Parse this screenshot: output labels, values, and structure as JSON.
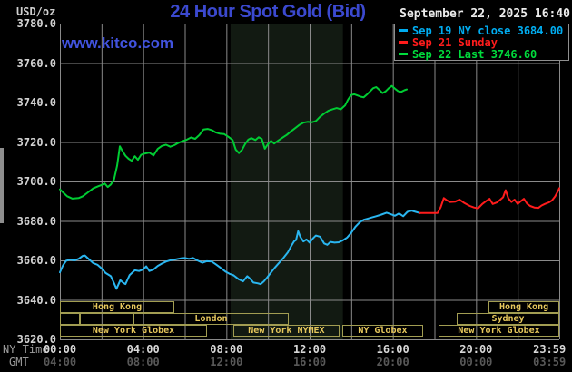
{
  "header": {
    "units_label": "USD/oz",
    "title": "24 Hour Spot Gold (Bid)",
    "datetime": "September 22, 2025 16:40",
    "watermark": "www.kitco.com"
  },
  "legend": {
    "items": [
      {
        "label": "Sep 19 NY close 3684.00",
        "color": "#00acf0"
      },
      {
        "label": "Sep 21 Sunday",
        "color": "#ff1c1c"
      },
      {
        "label": "Sep 22 Last 3746.60",
        "color": "#00dc3c"
      }
    ]
  },
  "axes": {
    "y_ticks": [
      "3780.0",
      "3760.0",
      "3740.0",
      "3720.0",
      "3700.0",
      "3680.0",
      "3660.0",
      "3640.0",
      "3620.0"
    ],
    "x_rows": [
      {
        "label": "NY Time",
        "ticks": [
          "00:00",
          "04:00",
          "08:00",
          "12:00",
          "16:00",
          "20:00",
          "23:59"
        ]
      },
      {
        "label": "GMT",
        "ticks": [
          "04:00",
          "08:00",
          "12:00",
          "16:00",
          "20:00",
          "00:00",
          "03:59"
        ]
      }
    ],
    "x_tick_hours": [
      0,
      4,
      8,
      12,
      16,
      20,
      24
    ]
  },
  "sessions": {
    "rows": [
      {
        "boxes": [
          {
            "label": "Hong Kong",
            "start": 0,
            "end": 5.5
          },
          {
            "label": "Hong Kong",
            "start": 20.6,
            "end": 24
          }
        ]
      },
      {
        "boxes": [
          {
            "label": "",
            "start": 0,
            "end": 0.96
          },
          {
            "label": "",
            "start": 0.96,
            "end": 3.53
          },
          {
            "label": "London",
            "start": 3.53,
            "end": 11.0
          },
          {
            "label": "Sydney",
            "start": 19.07,
            "end": 24
          }
        ]
      },
      {
        "boxes": [
          {
            "label": "New York Globex",
            "start": 0,
            "end": 7.07
          },
          {
            "label": "New York NYMEX",
            "start": 8.33,
            "end": 13.44
          },
          {
            "label": "NY Globex",
            "start": 13.57,
            "end": 17.45
          },
          {
            "label": "New York Globex",
            "start": 18.2,
            "end": 24
          }
        ]
      }
    ]
  },
  "chart_data": {
    "type": "line",
    "title": "24 Hour Spot Gold (Bid)",
    "xlabel": "NY Time",
    "ylabel": "USD/oz",
    "x_range_hours": [
      0,
      24
    ],
    "ylim": [
      3620,
      3780
    ],
    "y_tick_step": 20,
    "x_gridline_step_hours": 2,
    "grid": true,
    "legend_position": "top-right",
    "shaded_band_hours": [
      8.2,
      13.6
    ],
    "shaded_band_color": "#121a12",
    "grid_color": "#8a8a8a",
    "last": 3746.6,
    "prev_close": 3684.0,
    "series": [
      {
        "name": "Sep 19 NY close 3684.00",
        "color": "#2ab6f0",
        "points": [
          [
            0,
            3654
          ],
          [
            0.15,
            3657.5
          ],
          [
            0.3,
            3659.8
          ],
          [
            0.5,
            3660.3
          ],
          [
            0.7,
            3660
          ],
          [
            0.9,
            3660.8
          ],
          [
            1.1,
            3662.3
          ],
          [
            1.2,
            3662.5
          ],
          [
            1.4,
            3660.5
          ],
          [
            1.6,
            3658.6
          ],
          [
            1.8,
            3657.8
          ],
          [
            2.0,
            3656
          ],
          [
            2.2,
            3653.6
          ],
          [
            2.45,
            3652
          ],
          [
            2.6,
            3648.5
          ],
          [
            2.72,
            3645.6
          ],
          [
            2.9,
            3650
          ],
          [
            3.05,
            3648.6
          ],
          [
            3.15,
            3648
          ],
          [
            3.35,
            3652.6
          ],
          [
            3.6,
            3655
          ],
          [
            3.8,
            3654.6
          ],
          [
            4.0,
            3655.4
          ],
          [
            4.15,
            3657
          ],
          [
            4.3,
            3654.6
          ],
          [
            4.5,
            3655.4
          ],
          [
            4.7,
            3657.2
          ],
          [
            4.9,
            3658.4
          ],
          [
            5.1,
            3659.4
          ],
          [
            5.35,
            3660.2
          ],
          [
            5.6,
            3660.6
          ],
          [
            5.8,
            3661
          ],
          [
            6.0,
            3661.2
          ],
          [
            6.2,
            3660.8
          ],
          [
            6.4,
            3661.2
          ],
          [
            6.6,
            3660
          ],
          [
            6.85,
            3658.8
          ],
          [
            7.05,
            3659.6
          ],
          [
            7.3,
            3659.4
          ],
          [
            7.5,
            3658
          ],
          [
            7.7,
            3656.4
          ],
          [
            7.95,
            3654.4
          ],
          [
            8.15,
            3653.2
          ],
          [
            8.35,
            3652.4
          ],
          [
            8.6,
            3650.4
          ],
          [
            8.8,
            3649.4
          ],
          [
            9.0,
            3652
          ],
          [
            9.15,
            3650.6
          ],
          [
            9.3,
            3648.8
          ],
          [
            9.5,
            3648.4
          ],
          [
            9.65,
            3648
          ],
          [
            9.8,
            3649.4
          ],
          [
            9.95,
            3651.2
          ],
          [
            10.15,
            3654
          ],
          [
            10.35,
            3656.6
          ],
          [
            10.55,
            3659
          ],
          [
            10.75,
            3661.4
          ],
          [
            10.95,
            3664
          ],
          [
            11.1,
            3667
          ],
          [
            11.25,
            3669.6
          ],
          [
            11.35,
            3670.4
          ],
          [
            11.45,
            3674.8
          ],
          [
            11.55,
            3672
          ],
          [
            11.7,
            3669.6
          ],
          [
            11.85,
            3670.6
          ],
          [
            12.0,
            3669
          ],
          [
            12.15,
            3671
          ],
          [
            12.3,
            3672.6
          ],
          [
            12.5,
            3672
          ],
          [
            12.7,
            3668.6
          ],
          [
            12.85,
            3667.9
          ],
          [
            13.0,
            3669.4
          ],
          [
            13.2,
            3669
          ],
          [
            13.4,
            3669.2
          ],
          [
            13.6,
            3670.2
          ],
          [
            13.8,
            3671.6
          ],
          [
            14.0,
            3674
          ],
          [
            14.2,
            3677
          ],
          [
            14.4,
            3679.2
          ],
          [
            14.6,
            3680.6
          ],
          [
            14.8,
            3681.2
          ],
          [
            15.0,
            3681.8
          ],
          [
            15.2,
            3682.4
          ],
          [
            15.45,
            3683.2
          ],
          [
            15.7,
            3684.2
          ],
          [
            15.9,
            3683.4
          ],
          [
            16.1,
            3682.6
          ],
          [
            16.3,
            3683.8
          ],
          [
            16.5,
            3682.4
          ],
          [
            16.7,
            3684.6
          ],
          [
            16.9,
            3685.2
          ],
          [
            17.1,
            3684.6
          ],
          [
            17.3,
            3684
          ]
        ]
      },
      {
        "name": "Sep 21 Sunday",
        "color": "#ff1c1c",
        "points": [
          [
            17.3,
            3684
          ],
          [
            17.6,
            3684
          ],
          [
            17.9,
            3684
          ],
          [
            18.15,
            3684
          ],
          [
            18.3,
            3687
          ],
          [
            18.45,
            3691.6
          ],
          [
            18.6,
            3690.4
          ],
          [
            18.75,
            3689.6
          ],
          [
            19.0,
            3689.8
          ],
          [
            19.2,
            3690.8
          ],
          [
            19.45,
            3689
          ],
          [
            19.7,
            3687.6
          ],
          [
            19.9,
            3686.8
          ],
          [
            20.1,
            3686.4
          ],
          [
            20.3,
            3688.6
          ],
          [
            20.5,
            3690.2
          ],
          [
            20.65,
            3691.2
          ],
          [
            20.8,
            3688.6
          ],
          [
            21.0,
            3689.4
          ],
          [
            21.15,
            3690.6
          ],
          [
            21.3,
            3692
          ],
          [
            21.42,
            3695.6
          ],
          [
            21.55,
            3691.4
          ],
          [
            21.7,
            3689.6
          ],
          [
            21.85,
            3690.8
          ],
          [
            22.0,
            3688.6
          ],
          [
            22.15,
            3690
          ],
          [
            22.3,
            3691.2
          ],
          [
            22.45,
            3688.8
          ],
          [
            22.6,
            3687.6
          ],
          [
            22.8,
            3686.8
          ],
          [
            23.0,
            3686.6
          ],
          [
            23.15,
            3687.8
          ],
          [
            23.3,
            3688.6
          ],
          [
            23.5,
            3689.4
          ],
          [
            23.65,
            3690.4
          ],
          [
            23.8,
            3692.4
          ],
          [
            23.95,
            3695.4
          ],
          [
            24.0,
            3696.6
          ]
        ]
      },
      {
        "name": "Sep 22 Last 3746.60",
        "color": "#00cc33",
        "points": [
          [
            0,
            3696
          ],
          [
            0.2,
            3694
          ],
          [
            0.35,
            3692.5
          ],
          [
            0.6,
            3691.3
          ],
          [
            0.9,
            3691.6
          ],
          [
            1.1,
            3692.5
          ],
          [
            1.35,
            3694.5
          ],
          [
            1.6,
            3696.5
          ],
          [
            1.85,
            3697.6
          ],
          [
            2.0,
            3698.2
          ],
          [
            2.15,
            3699
          ],
          [
            2.3,
            3697.2
          ],
          [
            2.45,
            3698.5
          ],
          [
            2.6,
            3701
          ],
          [
            2.75,
            3708
          ],
          [
            2.88,
            3717.8
          ],
          [
            3.0,
            3715.5
          ],
          [
            3.15,
            3713
          ],
          [
            3.3,
            3711.5
          ],
          [
            3.45,
            3710.5
          ],
          [
            3.6,
            3712.8
          ],
          [
            3.75,
            3711
          ],
          [
            3.9,
            3713.5
          ],
          [
            4.1,
            3714.2
          ],
          [
            4.3,
            3714.6
          ],
          [
            4.5,
            3713.2
          ],
          [
            4.7,
            3716.5
          ],
          [
            4.9,
            3718
          ],
          [
            5.1,
            3718.6
          ],
          [
            5.3,
            3717.6
          ],
          [
            5.5,
            3718.4
          ],
          [
            5.7,
            3719.6
          ],
          [
            5.9,
            3720.4
          ],
          [
            6.1,
            3721.2
          ],
          [
            6.3,
            3722.3
          ],
          [
            6.5,
            3721.6
          ],
          [
            6.7,
            3723.5
          ],
          [
            6.9,
            3726.3
          ],
          [
            7.1,
            3726.6
          ],
          [
            7.3,
            3726
          ],
          [
            7.5,
            3724.8
          ],
          [
            7.7,
            3724.2
          ],
          [
            7.9,
            3724
          ],
          [
            8.1,
            3722.6
          ],
          [
            8.3,
            3721
          ],
          [
            8.45,
            3716.2
          ],
          [
            8.6,
            3714.4
          ],
          [
            8.75,
            3716
          ],
          [
            8.9,
            3719
          ],
          [
            9.05,
            3721.2
          ],
          [
            9.2,
            3722
          ],
          [
            9.4,
            3721
          ],
          [
            9.55,
            3722.4
          ],
          [
            9.7,
            3721.6
          ],
          [
            9.85,
            3716.6
          ],
          [
            10.0,
            3719
          ],
          [
            10.15,
            3720.6
          ],
          [
            10.3,
            3719.2
          ],
          [
            10.5,
            3720.8
          ],
          [
            10.7,
            3722.2
          ],
          [
            10.9,
            3723.6
          ],
          [
            11.1,
            3725.4
          ],
          [
            11.3,
            3727
          ],
          [
            11.5,
            3728.6
          ],
          [
            11.7,
            3729.8
          ],
          [
            11.9,
            3730.2
          ],
          [
            12.1,
            3730
          ],
          [
            12.3,
            3730.6
          ],
          [
            12.5,
            3732.8
          ],
          [
            12.7,
            3734.4
          ],
          [
            12.9,
            3735.8
          ],
          [
            13.1,
            3736.6
          ],
          [
            13.3,
            3737.2
          ],
          [
            13.5,
            3736.6
          ],
          [
            13.7,
            3738.5
          ],
          [
            13.85,
            3741.5
          ],
          [
            14.0,
            3743.8
          ],
          [
            14.15,
            3744.2
          ],
          [
            14.3,
            3743.6
          ],
          [
            14.45,
            3743
          ],
          [
            14.6,
            3742.6
          ],
          [
            14.75,
            3744
          ],
          [
            14.9,
            3745.6
          ],
          [
            15.05,
            3747.2
          ],
          [
            15.2,
            3747.8
          ],
          [
            15.35,
            3746.4
          ],
          [
            15.5,
            3744.8
          ],
          [
            15.65,
            3745.6
          ],
          [
            15.8,
            3747.2
          ],
          [
            15.95,
            3748.4
          ],
          [
            16.1,
            3747
          ],
          [
            16.25,
            3745.8
          ],
          [
            16.4,
            3745.4
          ],
          [
            16.55,
            3746.2
          ],
          [
            16.67,
            3746.6
          ]
        ]
      }
    ]
  }
}
